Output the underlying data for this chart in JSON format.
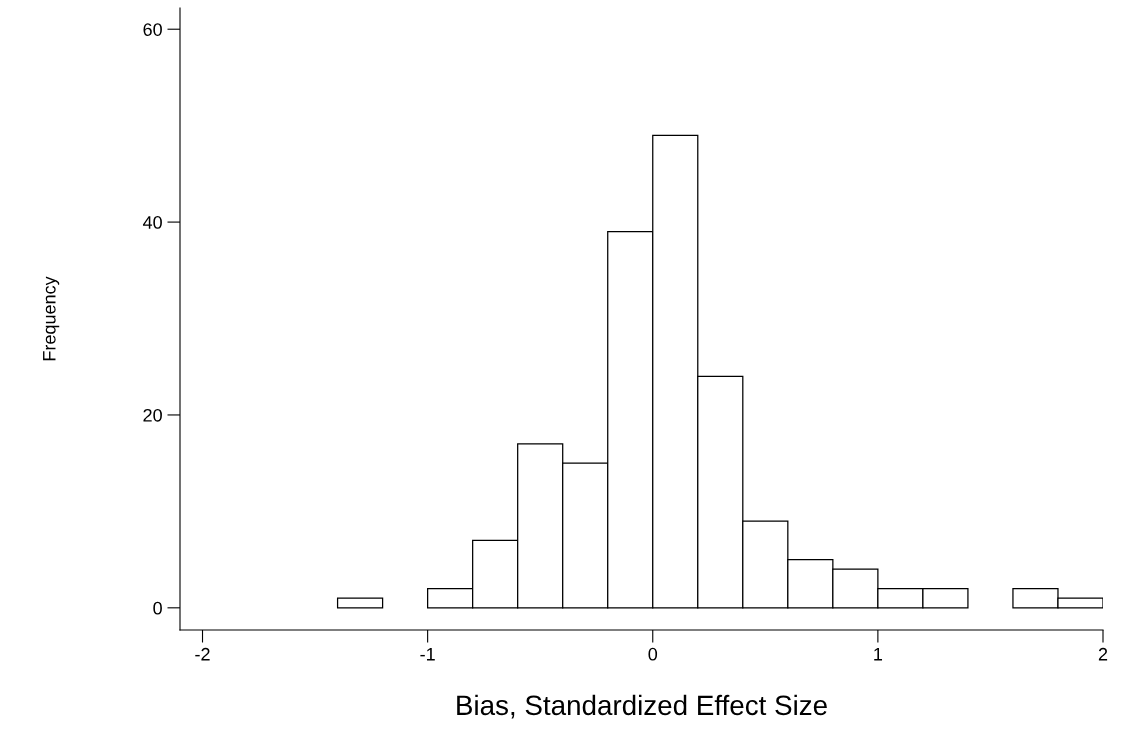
{
  "chart_data": {
    "type": "histogram",
    "xlabel": "Bias, Standardized Effect Size",
    "ylabel": "Frequency",
    "bins": [
      -1.4,
      -1.2,
      -1.0,
      -0.8,
      -0.6,
      -0.4,
      -0.2,
      0.0,
      0.2,
      0.4,
      0.6,
      0.8,
      1.0,
      1.2,
      1.4,
      1.6,
      1.8,
      2.0
    ],
    "values": [
      1,
      0,
      2,
      7,
      17,
      15,
      39,
      49,
      24,
      9,
      5,
      4,
      2,
      2,
      0,
      2,
      1
    ],
    "color": "#ffffff",
    "xlim": [
      -2.1,
      2.0
    ],
    "ylim": [
      -2.3,
      62.2
    ],
    "xticks": [
      {
        "value": -2,
        "label": "-2"
      },
      {
        "value": -1,
        "label": "-1"
      },
      0,
      1,
      2
    ],
    "yticks": [
      0,
      20,
      40,
      60
    ],
    "grid": false
  }
}
